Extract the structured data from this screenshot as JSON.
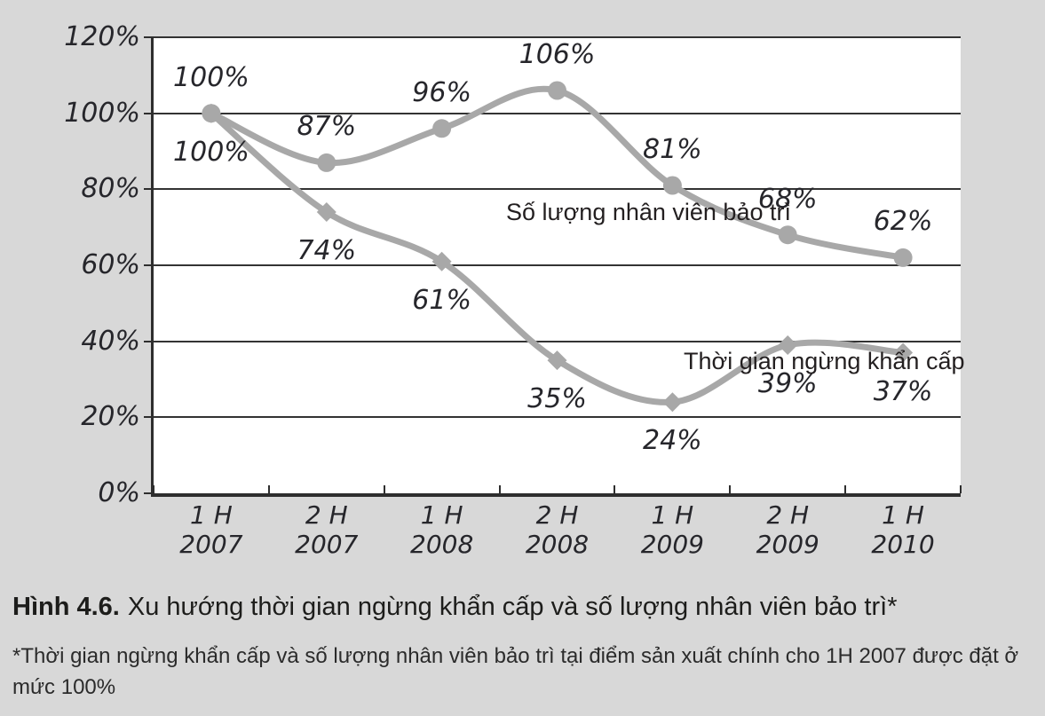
{
  "figure": {
    "caption_label": "Hình 4.6.",
    "caption_text": "Xu hướng thời gian ngừng khẩn cấp và số lượng nhân viên bảo trì*",
    "footnote": "*Thời gian ngừng khẩn cấp và số lượng nhân viên bảo trì tại điểm sản xuất chính cho 1H 2007 được đặt ở mức 100%"
  },
  "chart_data": {
    "type": "line",
    "categories": [
      "1 H 2007",
      "2 H 2007",
      "1 H 2008",
      "2 H 2008",
      "1 H 2009",
      "2 H 2009",
      "1 H 2010"
    ],
    "x_tick_lines": [
      [
        "1 H",
        "2007"
      ],
      [
        "2 H",
        "2007"
      ],
      [
        "1 H",
        "2008"
      ],
      [
        "2 H",
        "2008"
      ],
      [
        "1 H",
        "2009"
      ],
      [
        "2 H",
        "2009"
      ],
      [
        "1 H",
        "2010"
      ]
    ],
    "series": [
      {
        "name": "Số lượng nhân viên bảo trì",
        "values": [
          100,
          87,
          96,
          106,
          81,
          68,
          62
        ],
        "marker": "circle",
        "data_label_position": "above"
      },
      {
        "name": "Thời gian ngừng khẩn cấp",
        "values": [
          100,
          74,
          61,
          35,
          24,
          39,
          37
        ],
        "marker": "diamond",
        "data_label_position": "below"
      }
    ],
    "value_suffix": "%",
    "ylim": [
      0,
      120
    ],
    "ytick_step": 20,
    "ytick_labels": [
      "0%",
      "20%",
      "40%",
      "60%",
      "80%",
      "100%",
      "120%"
    ],
    "grid": true,
    "legend_position": "inline-annotations",
    "colors": {
      "line": "#a8a8a8",
      "axis": "#2e2e2e",
      "grid": "#333333",
      "label_text": "#26262b",
      "page_bg": "#d8d8d8",
      "plot_bg": "#ffffff"
    }
  }
}
